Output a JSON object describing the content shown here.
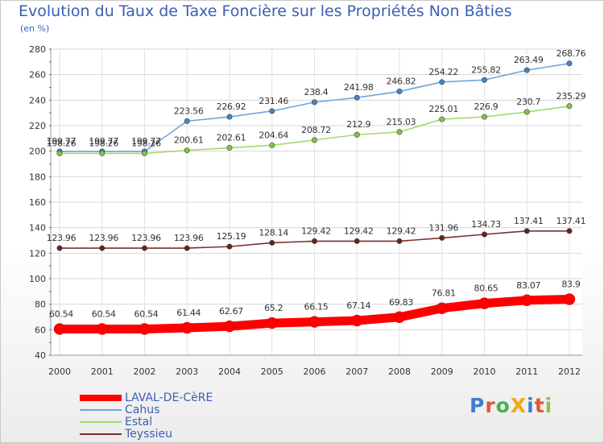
{
  "page": {
    "title": "Evolution du Taux de Taxe Foncière sur les Propriétés Non Bâties",
    "unit": "(en %)",
    "logo": "ProXiti"
  },
  "chart_data": {
    "type": "line",
    "title": "Evolution du Taux de Taxe Foncière sur les Propriétés Non Bâties",
    "ylabel": "(en %)",
    "xlabel": "",
    "x": [
      "2000",
      "2001",
      "2002",
      "2003",
      "2004",
      "2005",
      "2006",
      "2007",
      "2008",
      "2009",
      "2010",
      "2011",
      "2012"
    ],
    "ylim": [
      40,
      280
    ],
    "yticks": [
      40,
      60,
      80,
      100,
      120,
      140,
      160,
      180,
      200,
      220,
      240,
      260,
      280
    ],
    "grid": true,
    "legend_position": "bottom-left",
    "series": [
      {
        "name": "LAVAL-DE-CèRE",
        "color": "#ff0000",
        "marker_color": "#ff0000",
        "label_color": "#333333",
        "values": [
          60.54,
          60.54,
          60.54,
          61.44,
          62.67,
          65.2,
          66.15,
          67.14,
          69.83,
          76.81,
          80.65,
          83.07,
          83.9
        ],
        "labels": [
          "60.54",
          "60.54",
          "60.54",
          "61.44",
          "62.67",
          "65.2",
          "66.15",
          "67.14",
          "69.83",
          "76.81",
          "80.65",
          "83.07",
          "83.9"
        ]
      },
      {
        "name": "Cahus",
        "color": "#6ea6dd",
        "marker_color": "#3d86c9",
        "label_color": "#333333",
        "values": [
          199.77,
          199.77,
          199.77,
          223.56,
          226.92,
          231.46,
          238.4,
          241.98,
          246.82,
          254.22,
          255.82,
          263.49,
          268.76
        ],
        "labels": [
          "199.77",
          "199.77",
          "199.77",
          "223.56",
          "226.92",
          "231.46",
          "238.4",
          "241.98",
          "246.82",
          "254.22",
          "255.82",
          "263.49",
          "268.76"
        ]
      },
      {
        "name": "Estal",
        "color": "#a6d86e",
        "marker_color": "#7cc840",
        "label_color": "#333333",
        "values": [
          198.26,
          198.26,
          198.26,
          200.61,
          202.61,
          204.64,
          208.72,
          212.9,
          215.03,
          225.01,
          226.9,
          230.7,
          235.29
        ],
        "labels": [
          "198.26",
          "198.26",
          "198.26",
          "200.61",
          "202.61",
          "204.64",
          "208.72",
          "212.9",
          "215.03",
          "225.01",
          "226.9",
          "230.7",
          "235.29"
        ]
      },
      {
        "name": "Teyssieu",
        "color": "#7a2f2f",
        "marker_color": "#6b2020",
        "label_color": "#333333",
        "values": [
          123.96,
          123.96,
          123.96,
          123.96,
          125.19,
          128.14,
          129.42,
          129.42,
          129.42,
          131.96,
          134.73,
          137.41,
          137.41
        ],
        "labels": [
          "123.96",
          "123.96",
          "123.96",
          "123.96",
          "125.19",
          "128.14",
          "129.42",
          "129.42",
          "129.42",
          "131.96",
          "134.73",
          "137.41",
          "137.41"
        ]
      }
    ]
  }
}
